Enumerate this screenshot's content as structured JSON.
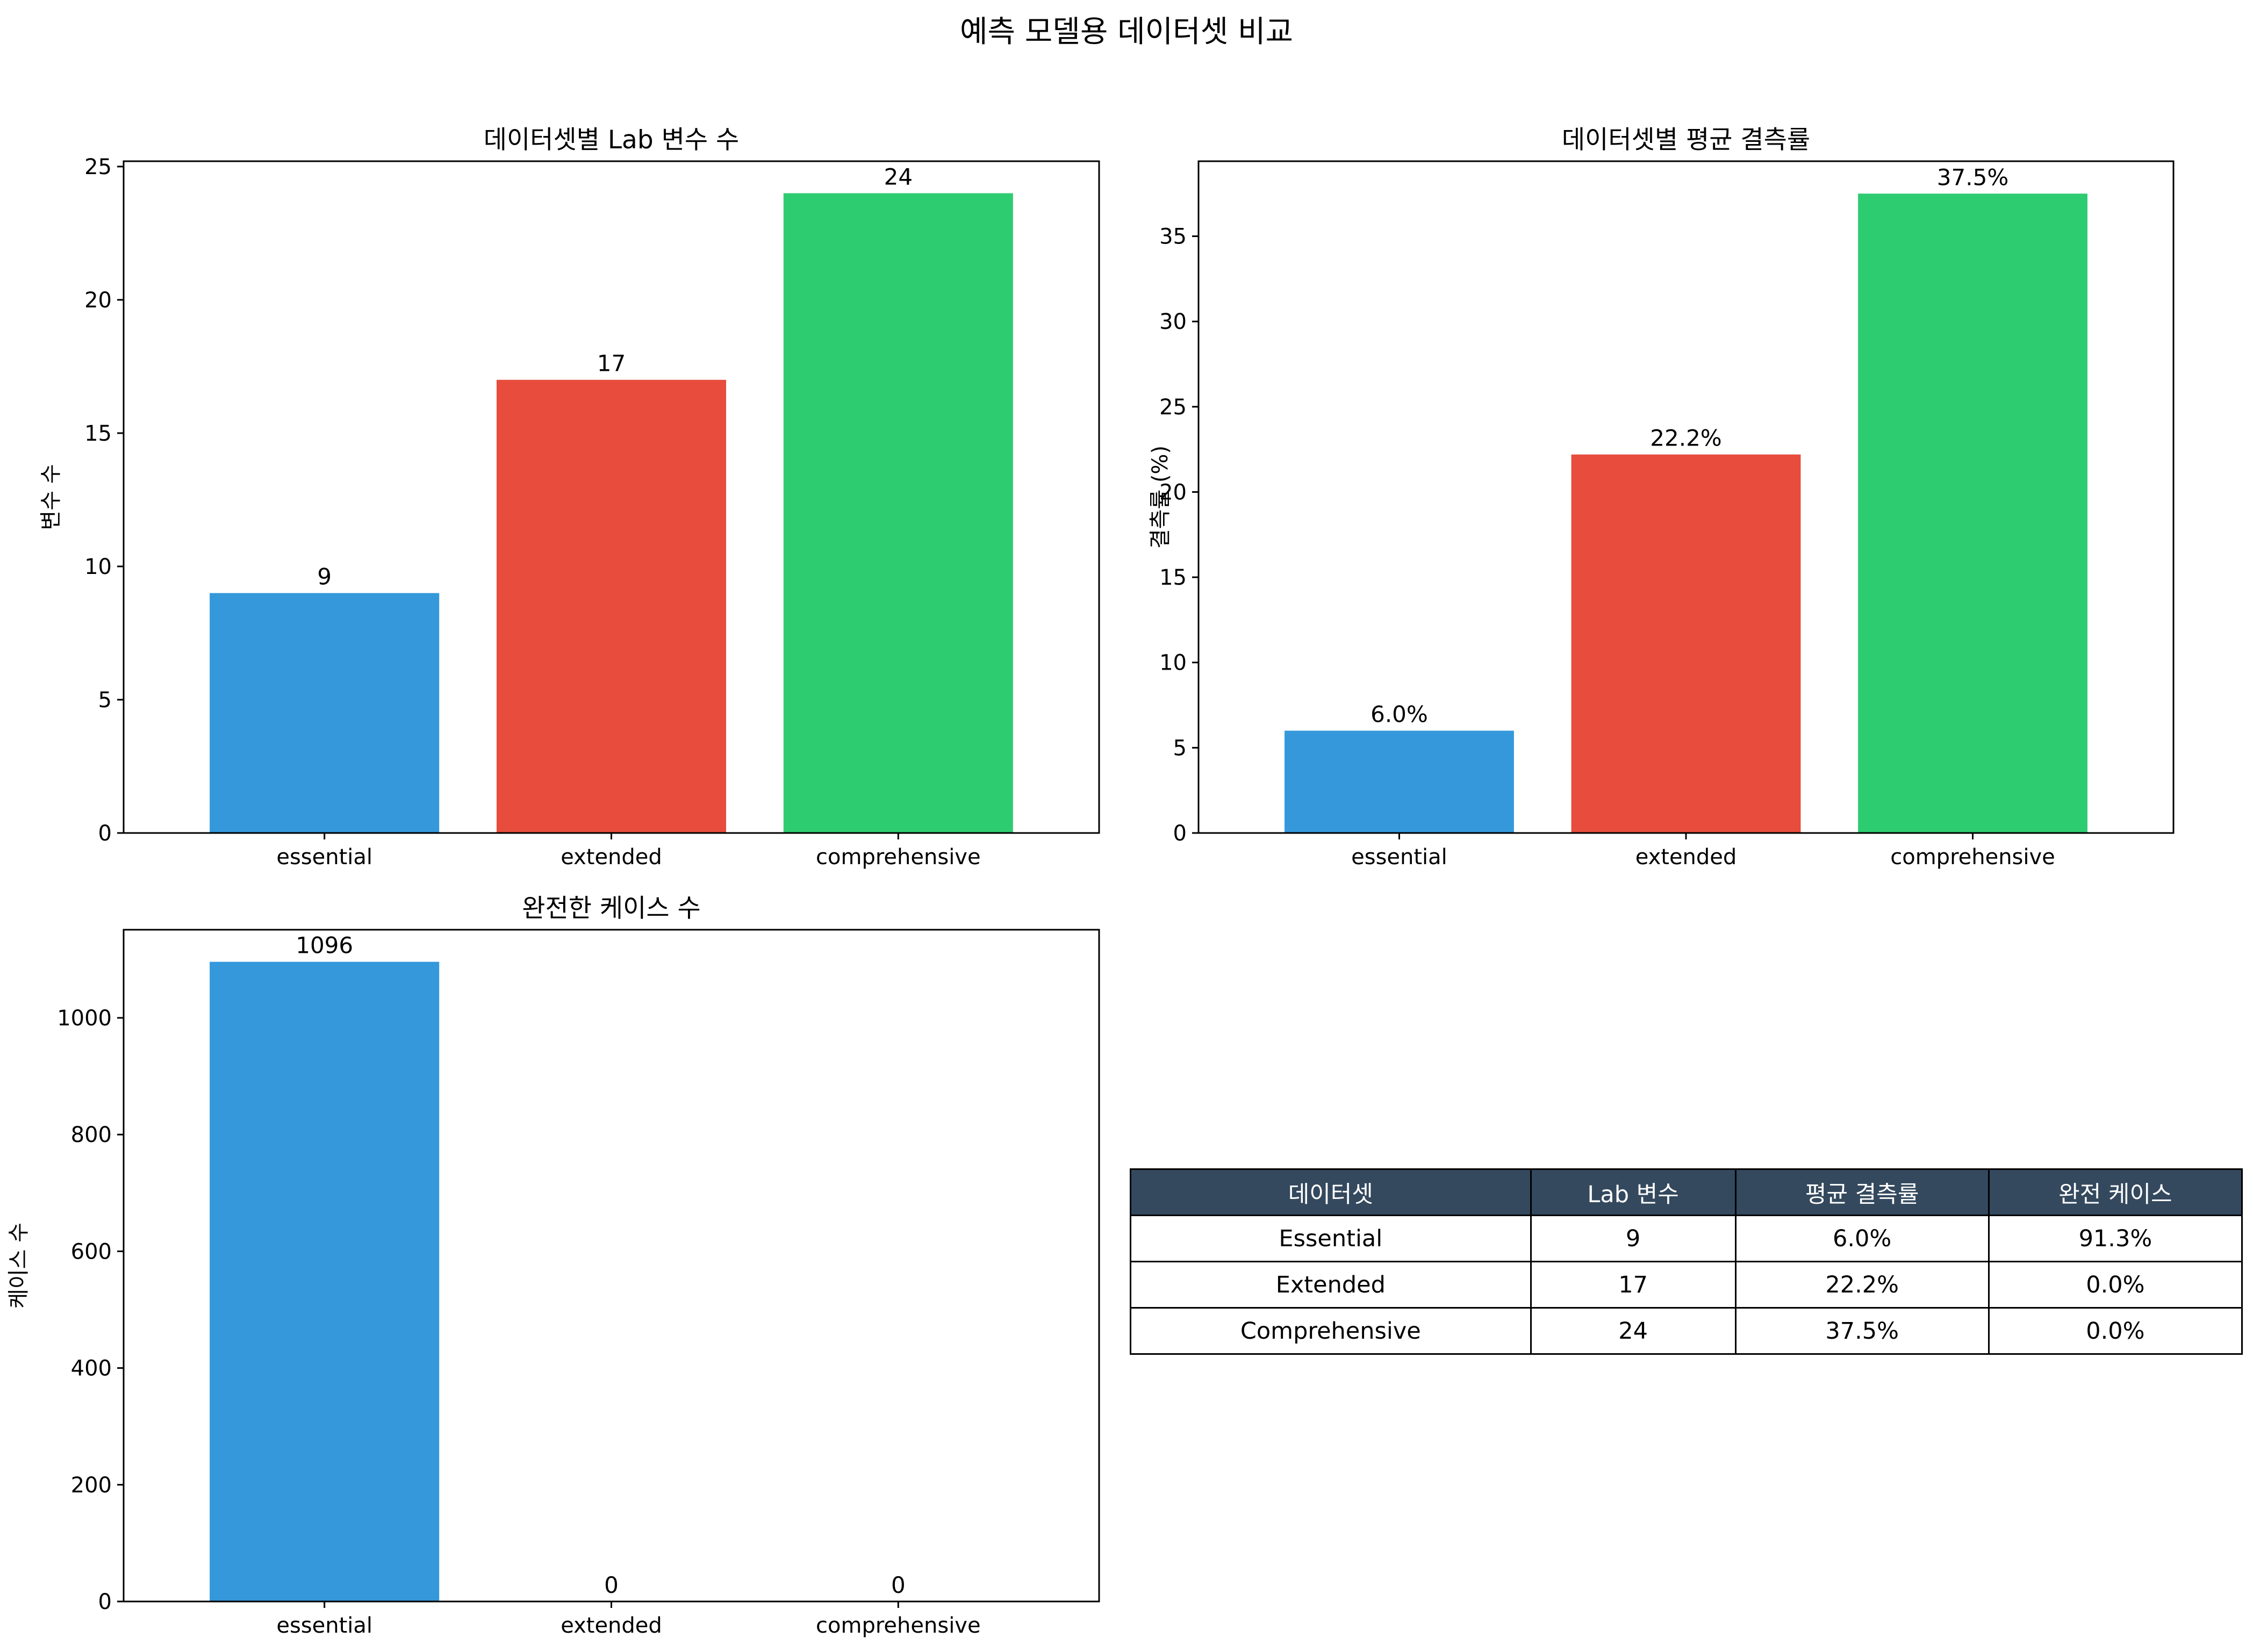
{
  "figure_title": "예측 모델용 데이터셋 비교",
  "colors": {
    "essential": "#3498db",
    "extended": "#e74c3c",
    "comprehensive": "#2ecc71",
    "table_header": "#34495e"
  },
  "chart_data": [
    {
      "type": "bar",
      "title": "데이터셋별 Lab 변수 수",
      "xlabel": "",
      "ylabel": "변수 수",
      "categories": [
        "essential",
        "extended",
        "comprehensive"
      ],
      "values": [
        9,
        17,
        24
      ],
      "value_labels": [
        "9",
        "17",
        "24"
      ],
      "ylim": [
        0,
        25.2
      ],
      "yticks": [
        0,
        5,
        10,
        15,
        20,
        25
      ],
      "grid": false
    },
    {
      "type": "bar",
      "title": "데이터셋별 평균 결측률",
      "xlabel": "",
      "ylabel": "결측률 (%)",
      "categories": [
        "essential",
        "extended",
        "comprehensive"
      ],
      "values": [
        6.0,
        22.2,
        37.5
      ],
      "value_labels": [
        "6.0%",
        "22.2%",
        "37.5%"
      ],
      "ylim": [
        0,
        39.4
      ],
      "yticks": [
        0,
        5,
        10,
        15,
        20,
        25,
        30,
        35
      ],
      "grid": false
    },
    {
      "type": "bar",
      "title": "완전한 케이스 수",
      "xlabel": "",
      "ylabel": "케이스 수",
      "categories": [
        "essential",
        "extended",
        "comprehensive"
      ],
      "values": [
        1096,
        0,
        0
      ],
      "value_labels": [
        "1096",
        "0",
        "0"
      ],
      "ylim": [
        0,
        1151
      ],
      "yticks": [
        0,
        200,
        400,
        600,
        800,
        1000
      ],
      "grid": false
    },
    {
      "type": "table",
      "columns": [
        "데이터셋",
        "Lab 변수",
        "평균 결측률",
        "완전 케이스"
      ],
      "rows": [
        [
          "Essential",
          "9",
          "6.0%",
          "91.3%"
        ],
        [
          "Extended",
          "17",
          "22.2%",
          "0.0%"
        ],
        [
          "Comprehensive",
          "24",
          "37.5%",
          "0.0%"
        ]
      ]
    }
  ]
}
